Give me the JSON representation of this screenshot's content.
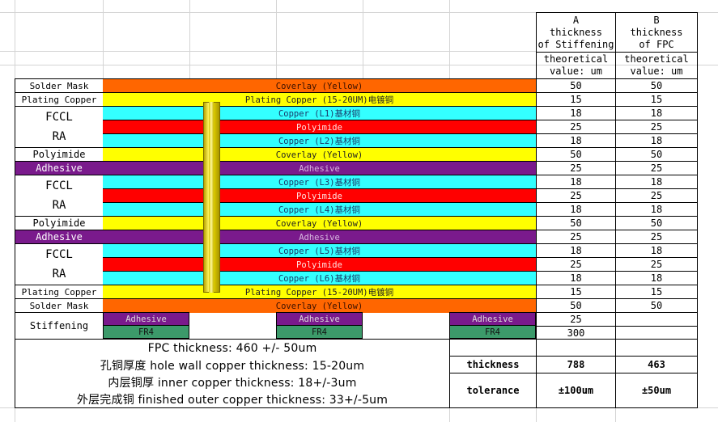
{
  "colors": {
    "coverlay": "#ff6600",
    "plating": "#ffff00",
    "copper": "#33ffff",
    "polyimide": "#ff0000",
    "adhesive": "#7a1a8c",
    "fr4": "#3c9a6a",
    "via": "#e8d800"
  },
  "header": {
    "col_a_lines": [
      "A",
      "thickness",
      "of Stiffening"
    ],
    "col_b_lines": [
      "B",
      "thickness",
      "of FPC"
    ],
    "sub_a_lines": [
      "theoretical",
      "value: um"
    ],
    "sub_b_lines": [
      "theoretical",
      "value: um"
    ]
  },
  "labels": {
    "solder_mask_top": "Solder Mask",
    "plating_top": "Plating Copper",
    "fccl1_a": "FCCL",
    "fccl1_b": "RA",
    "polyimide1": "Polyimide",
    "adhesive1": "Adhesive",
    "fccl2_a": "FCCL",
    "fccl2_b": "RA",
    "polyimide2": "Polyimide",
    "adhesive2": "Adhesive",
    "fccl3_a": "FCCL",
    "fccl3_b": "RA",
    "plating_bottom": "Plating Copper",
    "solder_mask_bottom": "Solder Mask",
    "stiffening": "Stiffening"
  },
  "layers": [
    {
      "name": "Coverlay (Yellow)",
      "a": "50",
      "b": "50"
    },
    {
      "name": "Plating Copper (15-20UM)电镀铜",
      "a": "15",
      "b": "15"
    },
    {
      "name": "Copper (L1)基材铜",
      "a": "18",
      "b": "18"
    },
    {
      "name": "Polyimide",
      "a": "25",
      "b": "25"
    },
    {
      "name": "Copper (L2)基材铜",
      "a": "18",
      "b": "18"
    },
    {
      "name": "Coverlay (Yellow)",
      "a": "50",
      "b": "50"
    },
    {
      "name": "Adhesive",
      "a": "25",
      "b": "25"
    },
    {
      "name": "Copper (L3)基材铜",
      "a": "18",
      "b": "18"
    },
    {
      "name": "Polyimide",
      "a": "25",
      "b": "25"
    },
    {
      "name": "Copper (L4)基材铜",
      "a": "18",
      "b": "18"
    },
    {
      "name": "Coverlay (Yellow)",
      "a": "50",
      "b": "50"
    },
    {
      "name": "Adhesive",
      "a": "25",
      "b": "25"
    },
    {
      "name": "Copper (L5)基材铜",
      "a": "18",
      "b": "18"
    },
    {
      "name": "Polyimide",
      "a": "25",
      "b": "25"
    },
    {
      "name": "Copper (L6)基材铜",
      "a": "18",
      "b": "18"
    },
    {
      "name": "Plating Copper (15-20UM)电镀铜",
      "a": "15",
      "b": "15"
    },
    {
      "name": "Coverlay (Yellow)",
      "a": "50",
      "b": "50"
    }
  ],
  "stiffener": {
    "adhesive": "Adhesive",
    "fr4": "FR4",
    "a_adhesive": "25",
    "a_fr4": "300"
  },
  "summary": {
    "fpc": "FPC thickness: 460 +/- 50um",
    "hole": "孔铜厚度 hole wall copper thickness: 15-20um",
    "inner": "内层铜厚 inner copper thickness: 18+/-3um",
    "outer": "外层完成铜 finished outer copper thickness: 33+/-5um"
  },
  "totals": {
    "thickness_label": "thickness",
    "a": "788",
    "b": "463",
    "tolerance_label": "tolerance",
    "a_tol": "±100um",
    "b_tol": "±50um"
  }
}
